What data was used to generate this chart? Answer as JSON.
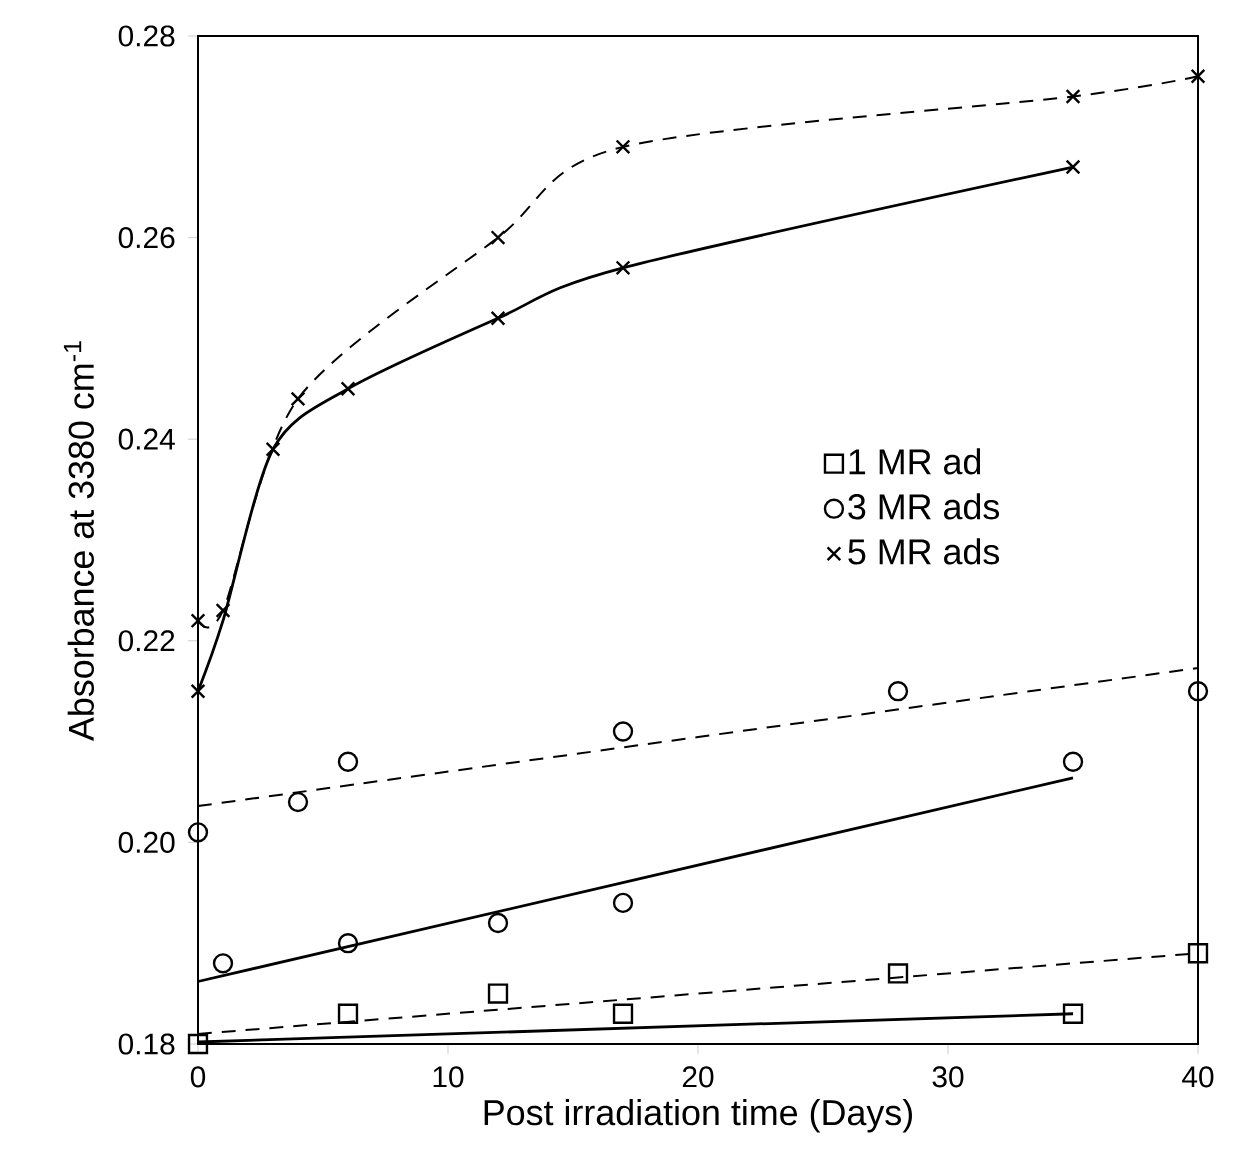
{
  "chart_data": {
    "type": "scatter",
    "xlabel": "Post irradiation time (Days)",
    "ylabel": "Absorbance at 3380 cm$^{-1}$",
    "xlim": [
      0,
      40
    ],
    "xticks": [
      0,
      10,
      20,
      30,
      40
    ],
    "ylim": [
      0.18,
      0.28
    ],
    "yticks": [
      0.18,
      {
        "value": 0.2,
        "label": "0.20"
      },
      0.22,
      0.24,
      0.26,
      0.28
    ],
    "grid": false,
    "legend": "right",
    "series": [
      {
        "name": "1 MR ad",
        "marker": "square",
        "color": "#000000",
        "x": [
          0,
          6,
          12,
          17,
          28,
          35,
          40
        ],
        "values": [
          0.18,
          0.183,
          0.185,
          0.183,
          0.187,
          0.183,
          0.189
        ]
      },
      {
        "name": "3 MR ads",
        "marker": "circle",
        "color": "#000000",
        "x": [
          0,
          1,
          4,
          6,
          6,
          12,
          17,
          17,
          28,
          35,
          40
        ],
        "values": [
          0.201,
          0.188,
          0.204,
          0.208,
          0.19,
          0.192,
          0.211,
          0.194,
          0.215,
          0.208,
          0.215
        ]
      },
      {
        "name": "5 MR ads",
        "marker": "cross",
        "color": "#000000",
        "x": [
          0,
          1,
          4,
          12,
          17,
          35,
          40,
          0,
          3,
          6,
          12,
          17,
          35
        ],
        "values": [
          0.222,
          0.223,
          0.244,
          0.26,
          0.269,
          0.274,
          0.276,
          0.215,
          0.239,
          0.245,
          0.252,
          0.257,
          0.267
        ]
      },
      {
        "type": "line",
        "line_style": "dashed",
        "color": "#000000",
        "x": [
          0,
          40
        ],
        "values": [
          0.181,
          0.189
        ]
      },
      {
        "type": "line",
        "line_style": "solid",
        "color": "#000000",
        "x": [
          0,
          35
        ],
        "values": [
          0.1802,
          0.183
        ]
      },
      {
        "type": "line",
        "line_style": "dashed",
        "color": "#000000",
        "x": [
          0,
          40
        ],
        "values": [
          0.2036,
          0.2173
        ]
      },
      {
        "type": "line",
        "line_style": "solid",
        "color": "#000000",
        "x": [
          0,
          35
        ],
        "values": [
          0.1862,
          0.2064
        ]
      },
      {
        "type": "line",
        "line_style": "dashed",
        "color": "#000000",
        "x": [
          0,
          1,
          4,
          12,
          17,
          35,
          40
        ],
        "values": [
          0.222,
          0.223,
          0.244,
          0.26,
          0.269,
          0.274,
          0.276
        ]
      },
      {
        "type": "line",
        "line_style": "solid",
        "color": "#000000",
        "x": [
          0,
          1,
          3,
          6,
          12,
          17,
          35
        ],
        "values": [
          0.215,
          0.222,
          0.239,
          0.245,
          0.252,
          0.257,
          0.267
        ]
      }
    ]
  }
}
